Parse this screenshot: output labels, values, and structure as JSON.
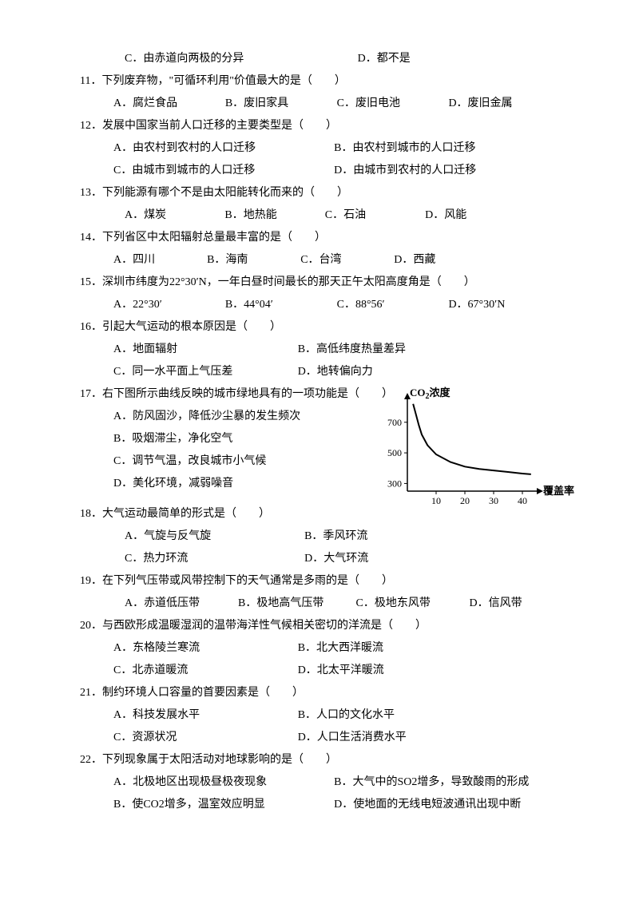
{
  "q10_partial": {
    "C": "C．由赤道向两极的分异",
    "D": "D．都不是"
  },
  "q11": {
    "stem": "11．下列废弃物，\"可循环利用\"价值最大的是（　　）",
    "A": "A．腐烂食品",
    "B": "B．废旧家具",
    "C": "C．废旧电池",
    "D": "D．废旧金属"
  },
  "q12": {
    "stem": "12．发展中国家当前人口迁移的主要类型是（　　）",
    "A": "A．由农村到农村的人口迁移",
    "B": "B．由农村到城市的人口迁移",
    "C": "C．由城市到城市的人口迁移",
    "D": "D．由城市到农村的人口迁移"
  },
  "q13": {
    "stem": "13．下列能源有哪个不是由太阳能转化而来的（　　）",
    "A": "A．煤炭",
    "B": "B．地热能",
    "C": "C．石油",
    "D": "D．风能"
  },
  "q14": {
    "stem": "14．下列省区中太阳辐射总量最丰富的是（　　）",
    "A": "A．四川",
    "B": "B．海南",
    "C": "C．台湾",
    "D": "D．西藏"
  },
  "q15": {
    "stem": "15．深圳市纬度为22°30′N，一年白昼时间最长的那天正午太阳高度角是（　　）",
    "A": "A．22°30′",
    "B": "B．44°04′",
    "C": "C．88°56′",
    "D": "D．67°30′N"
  },
  "q16": {
    "stem": "16．引起大气运动的根本原因是（　　）",
    "A": "A．地面辐射",
    "B": "B．高低纬度热量差异",
    "C": "C．同一水平面上气压差",
    "D": "D．地转偏向力"
  },
  "q17": {
    "stem": "17．右下图所示曲线反映的城市绿地具有的一项功能是（　　）",
    "A": "A．防风固沙，降低沙尘暴的发生频次",
    "B": "B．吸烟滞尘，净化空气",
    "C": "C．调节气温，改良城市小气候",
    "D": "D．美化环境，减弱噪音"
  },
  "q18": {
    "stem": "18．大气运动最简单的形式是（　　）",
    "A": "A．气旋与反气旋",
    "B": "B．季风环流",
    "C": "C．热力环流",
    "D": "D．大气环流"
  },
  "q19": {
    "stem": "19．在下列气压带或风带控制下的天气通常是多雨的是（　　）",
    "A": "A．赤道低压带",
    "B": "B．极地高气压带",
    "C": "C．极地东风带",
    "D": "D．信风带"
  },
  "q20": {
    "stem": "20．与西欧形成温暖湿润的温带海洋性气候相关密切的洋流是（　　）",
    "A": "A．东格陵兰寒流",
    "B": "B．北大西洋暖流",
    "C": "C．北赤道暖流",
    "D": "D．北太平洋暖流"
  },
  "q21": {
    "stem": "21．制约环境人口容量的首要因素是（　　）",
    "A": "A．科技发展水平",
    "B": "B．人口的文化水平",
    "C": "C．资源状况",
    "D": "D．人口生活消费水平"
  },
  "q22": {
    "stem": "22．下列现象属于太阳活动对地球影响的是（　　）",
    "A": "A．北极地区出现极昼极夜现象",
    "B": "B．大气中的SO2增多，导致酸雨的形成",
    "C": "B．使CO2增多，温室效应明显",
    "D": "D．使地面的无线电短波通讯出现中断"
  },
  "chart": {
    "type": "line",
    "y_label_line1": "CO",
    "y_label_sub": "2",
    "y_label_line1b": "浓度",
    "x_label": "覆盖率",
    "y_ticks": [
      300,
      500,
      700
    ],
    "x_ticks": [
      10,
      20,
      30,
      40
    ],
    "background": "#ffffff",
    "line_color": "#000000",
    "axis_color": "#000000",
    "data_points": [
      [
        2,
        820
      ],
      [
        3,
        750
      ],
      [
        4,
        680
      ],
      [
        5,
        620
      ],
      [
        7,
        550
      ],
      [
        10,
        490
      ],
      [
        15,
        440
      ],
      [
        20,
        410
      ],
      [
        25,
        395
      ],
      [
        30,
        385
      ],
      [
        35,
        375
      ],
      [
        40,
        365
      ],
      [
        43,
        360
      ]
    ],
    "xlim": [
      0,
      45
    ],
    "ylim": [
      250,
      850
    ],
    "line_width": 2
  }
}
